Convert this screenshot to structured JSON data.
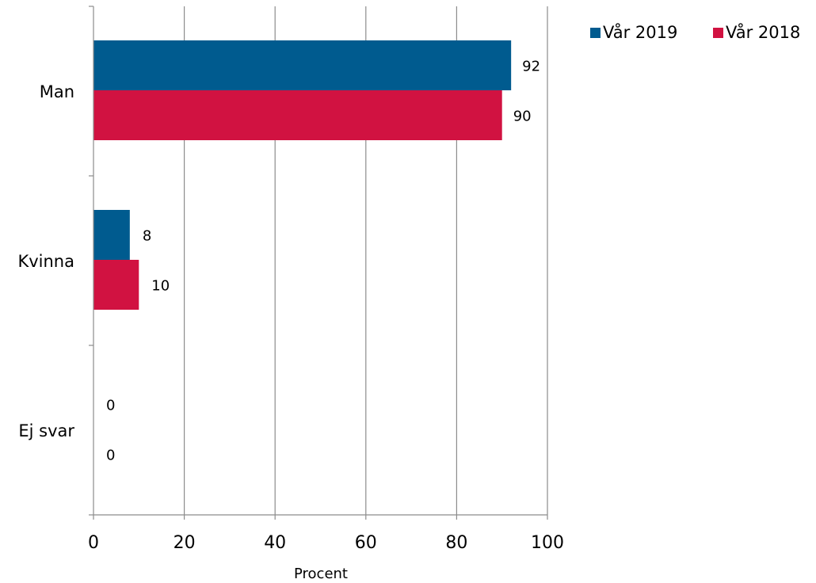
{
  "chart_data": {
    "type": "bar",
    "orientation": "horizontal",
    "categories": [
      "Man",
      "Kvinna",
      "Ej svar"
    ],
    "series": [
      {
        "name": "Vår 2019",
        "values": [
          92,
          8,
          0
        ],
        "color": "#005b8f"
      },
      {
        "name": "Vår 2018",
        "values": [
          90,
          10,
          0
        ],
        "color": "#d11241"
      }
    ],
    "xlabel": "Procent",
    "ylabel": "",
    "xlim": [
      0,
      100
    ],
    "xticks": [
      "0",
      "20",
      "40",
      "60",
      "80",
      "100"
    ],
    "grid": "vertical",
    "legend_position": "top-right",
    "data_labels": true
  }
}
